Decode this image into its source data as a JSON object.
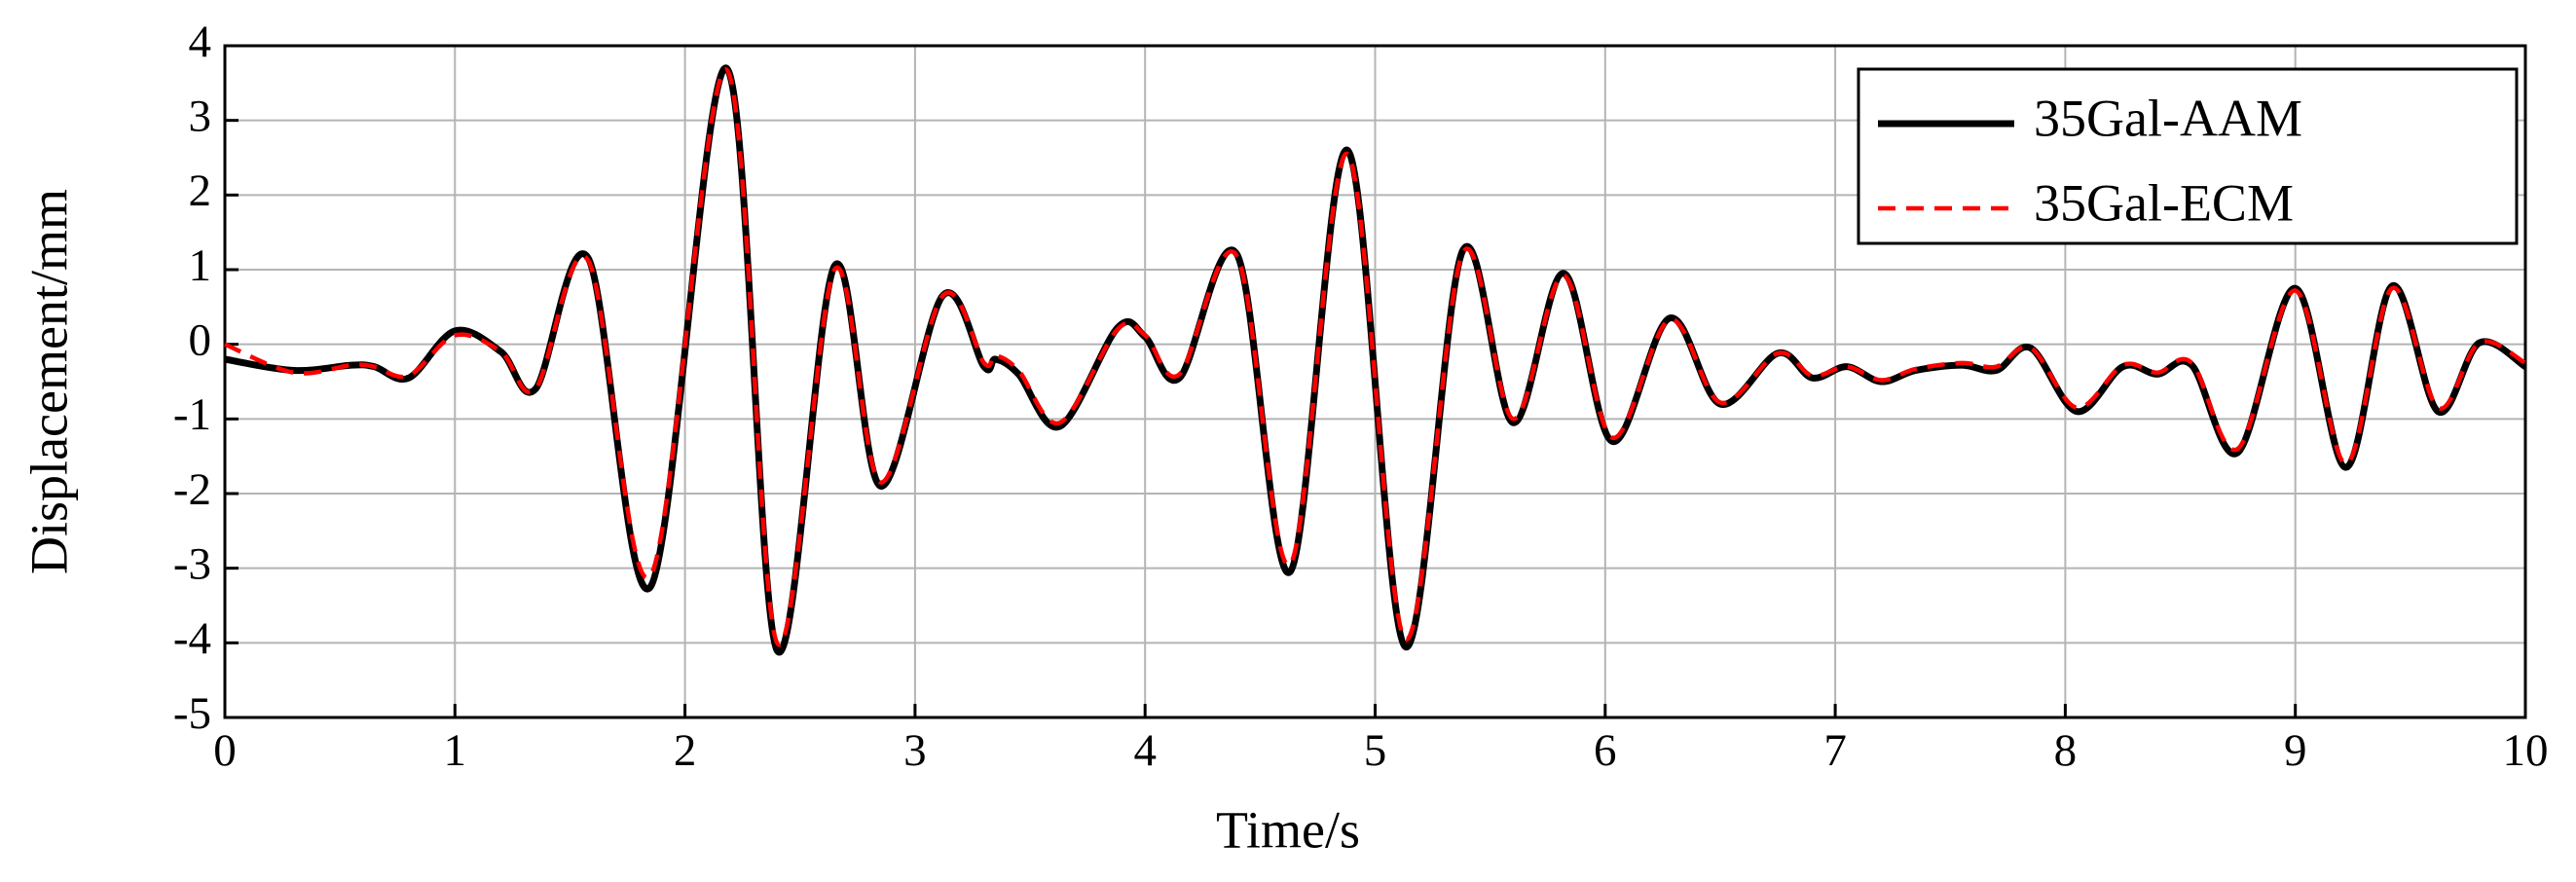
{
  "chart_data": {
    "type": "line",
    "xlabel": "Time/s",
    "ylabel": "Displacement/mm",
    "x": [
      0,
      0.3,
      0.55,
      0.65,
      0.8,
      1.0,
      1.2,
      1.35,
      1.58,
      1.85,
      2.18,
      2.4,
      2.65,
      2.85,
      3.12,
      3.3,
      3.35,
      3.45,
      3.63,
      3.88,
      4.0,
      4.15,
      4.4,
      4.63,
      4.88,
      5.13,
      5.38,
      5.6,
      5.82,
      6.03,
      6.28,
      6.5,
      6.75,
      6.9,
      7.05,
      7.2,
      7.35,
      7.55,
      7.7,
      7.85,
      8.05,
      8.25,
      8.4,
      8.55,
      8.75,
      9.0,
      9.22,
      9.42,
      9.62,
      9.8,
      10.0
    ],
    "series": [
      {
        "name": "35Gal-AAM",
        "color": "#000000",
        "dashed": false,
        "values": [
          -0.2,
          -0.35,
          -0.28,
          -0.3,
          -0.45,
          0.18,
          -0.1,
          -0.6,
          1.15,
          -3.25,
          3.7,
          -4.1,
          1.05,
          -1.9,
          0.65,
          -0.3,
          -0.2,
          -0.4,
          -1.1,
          0.22,
          0.1,
          -0.45,
          1.2,
          -3.05,
          2.6,
          -4.05,
          1.25,
          -1.05,
          0.95,
          -1.3,
          0.35,
          -0.8,
          -0.12,
          -0.45,
          -0.3,
          -0.5,
          -0.35,
          -0.28,
          -0.35,
          -0.05,
          -0.9,
          -0.3,
          -0.4,
          -0.28,
          -1.45,
          0.75,
          -1.65,
          0.78,
          -0.9,
          0.02,
          -0.3
        ]
      },
      {
        "name": "35Gal-ECM",
        "color": "#ff0000",
        "dashed": true,
        "values": [
          0.0,
          -0.38,
          -0.28,
          -0.3,
          -0.42,
          0.12,
          -0.1,
          -0.6,
          1.12,
          -3.1,
          3.68,
          -4.0,
          1.0,
          -1.85,
          0.65,
          -0.25,
          -0.15,
          -0.35,
          -1.05,
          0.2,
          0.12,
          -0.4,
          1.18,
          -2.95,
          2.55,
          -3.95,
          1.22,
          -1.0,
          0.92,
          -1.25,
          0.33,
          -0.78,
          -0.12,
          -0.42,
          -0.3,
          -0.48,
          -0.33,
          -0.25,
          -0.3,
          -0.05,
          -0.85,
          -0.28,
          -0.38,
          -0.25,
          -1.4,
          0.72,
          -1.6,
          0.75,
          -0.85,
          0.02,
          -0.25
        ]
      }
    ],
    "xlim": [
      0,
      10
    ],
    "xticks": [
      0,
      1,
      2,
      3,
      4,
      5,
      6,
      7,
      8,
      9,
      10
    ],
    "ylim": [
      -5,
      4
    ],
    "yticks": [
      -5,
      -4,
      -3,
      -2,
      -1,
      0,
      1,
      2,
      3,
      4
    ],
    "grid": true,
    "legend": "upper-right"
  }
}
